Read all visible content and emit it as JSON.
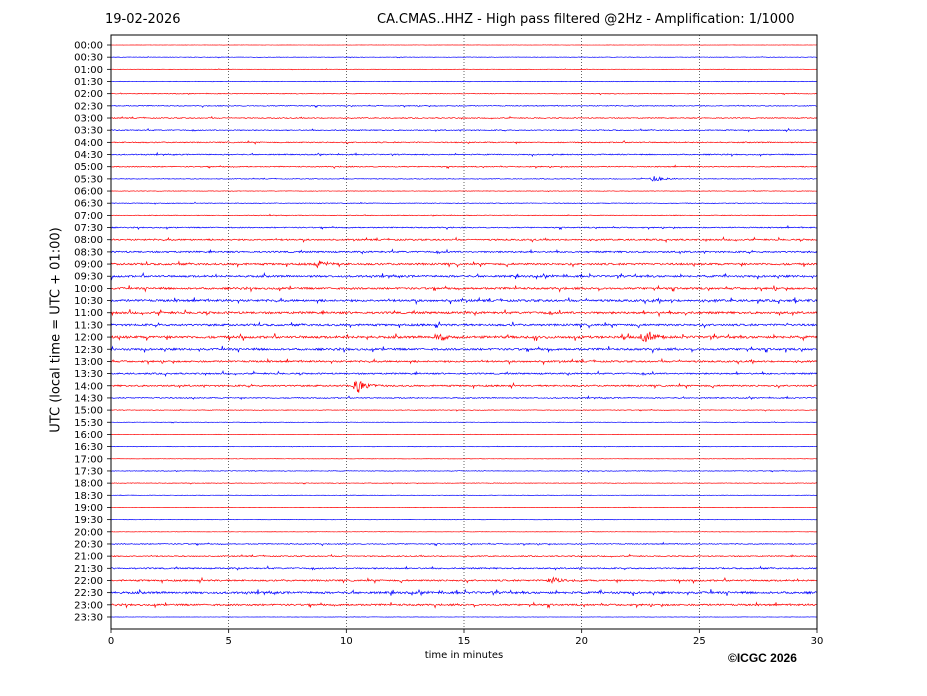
{
  "header": {
    "date": "19-02-2026",
    "title": "CA.CMAS..HHZ - High pass filtered @2Hz - Amplification: 1/1000"
  },
  "copyright": "©ICGC 2026",
  "colors": {
    "trace_a": "#ff0000",
    "trace_b": "#0000ff",
    "grid": "#000000"
  },
  "chart_data": {
    "type": "line",
    "xlabel": "time in minutes",
    "ylabel": "UTC (local time = UTC + 01:00)",
    "xlim": [
      0,
      30
    ],
    "x_ticks": [
      0,
      5,
      10,
      15,
      20,
      25,
      30
    ],
    "grid_x": "dotted vertical at 5,10,15,20,25",
    "rows": [
      "00:00",
      "00:30",
      "01:00",
      "01:30",
      "02:00",
      "02:30",
      "03:00",
      "03:30",
      "04:00",
      "04:30",
      "05:00",
      "05:30",
      "06:00",
      "06:30",
      "07:00",
      "07:30",
      "08:00",
      "08:30",
      "09:00",
      "09:30",
      "10:00",
      "10:30",
      "11:00",
      "11:30",
      "12:00",
      "12:30",
      "13:00",
      "13:30",
      "14:00",
      "14:30",
      "15:00",
      "15:30",
      "16:00",
      "16:30",
      "17:00",
      "17:30",
      "18:00",
      "18:30",
      "19:00",
      "19:30",
      "20:00",
      "20:30",
      "21:00",
      "21:30",
      "22:00",
      "22:30",
      "23:00",
      "23:30"
    ],
    "row_colors": [
      "red",
      "blue"
    ],
    "noise_level": [
      0.2,
      0.4,
      0.3,
      0.5,
      0.6,
      0.8,
      0.9,
      0.9,
      1.0,
      1.0,
      0.9,
      0.6,
      0.5,
      0.6,
      0.6,
      1.0,
      1.4,
      1.5,
      1.8,
      1.8,
      1.8,
      2.0,
      2.0,
      1.9,
      2.2,
      1.9,
      1.6,
      1.4,
      1.5,
      1.0,
      0.6,
      0.4,
      0.3,
      0.3,
      0.3,
      0.6,
      0.5,
      0.3,
      0.3,
      0.3,
      0.3,
      0.9,
      1.0,
      1.3,
      1.5,
      2.0,
      1.6,
      0.3
    ],
    "events": [
      {
        "row": "12:00",
        "minute": 22.7,
        "amplitude": 6
      },
      {
        "row": "14:00",
        "minute": 10.5,
        "amplitude": 7
      },
      {
        "row": "22:00",
        "minute": 18.8,
        "amplitude": 4
      },
      {
        "row": "09:00",
        "minute": 8.8,
        "amplitude": 4
      },
      {
        "row": "12:00",
        "minute": 13.9,
        "amplitude": 4
      },
      {
        "row": "05:30",
        "minute": 23.1,
        "amplitude": 3
      }
    ]
  }
}
